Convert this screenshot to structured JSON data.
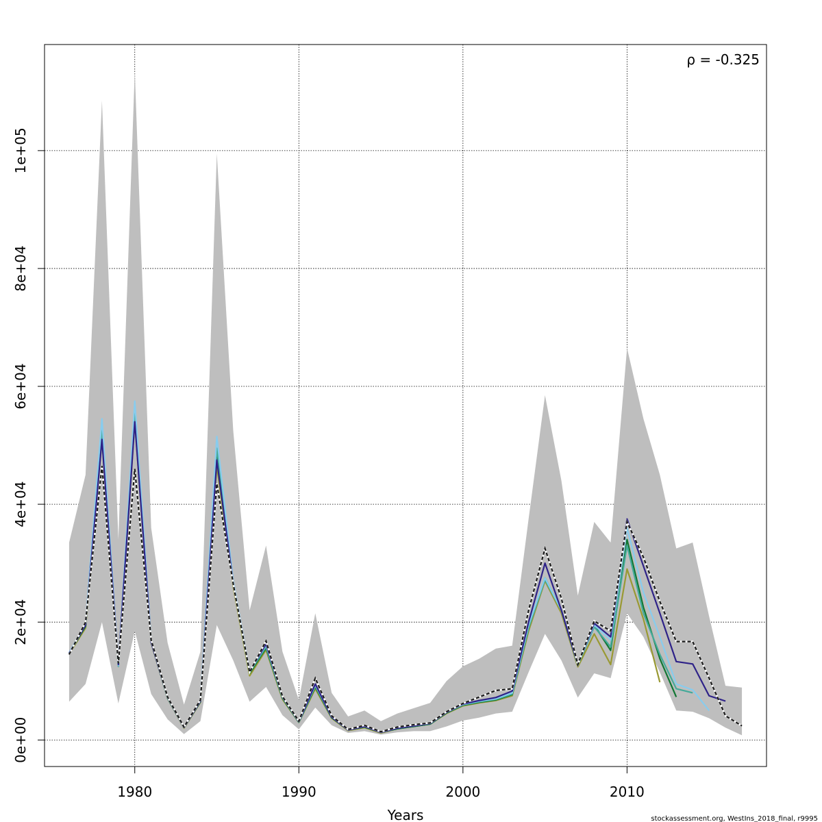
{
  "chart_data": {
    "type": "line",
    "title": "",
    "xlabel": "Years",
    "ylabel": "",
    "xlim": [
      1974.5,
      2018.5
    ],
    "ylim": [
      -4500,
      118000
    ],
    "xticks": [
      1980,
      1990,
      2000,
      2010
    ],
    "xtick_labels": [
      "1980",
      "1990",
      "2000",
      "2010"
    ],
    "yticks": [
      0,
      20000,
      40000,
      60000,
      80000,
      100000
    ],
    "ytick_labels": [
      "0e+00",
      "2e+04",
      "4e+04",
      "6e+04",
      "8e+04",
      "1e+05"
    ],
    "grid": true,
    "annotation": "ρ = -0.325",
    "footer": "stockassessment.org, WestIns_2018_final, r9995",
    "band": {
      "color": "#bebebe",
      "x": [
        1976,
        1977,
        1978,
        1979,
        1980,
        1981,
        1982,
        1983,
        1984,
        1985,
        1986,
        1987,
        1988,
        1989,
        1990,
        1991,
        1992,
        1993,
        1994,
        1995,
        1996,
        1997,
        1998,
        1999,
        2000,
        2001,
        2002,
        2003,
        2004,
        2005,
        2006,
        2007,
        2008,
        2009,
        2010,
        2011,
        2012,
        2013,
        2014,
        2015,
        2016,
        2017
      ],
      "upper": [
        33500,
        45000,
        108500,
        34000,
        113500,
        36000,
        16500,
        6000,
        15000,
        99500,
        52500,
        22000,
        33000,
        15000,
        6800,
        21500,
        8000,
        4000,
        5000,
        3200,
        4500,
        5400,
        6300,
        10000,
        12500,
        13800,
        15500,
        16000,
        37500,
        58500,
        44000,
        24500,
        37000,
        33500,
        66500,
        54500,
        45000,
        32500,
        33500,
        21000,
        9200,
        8900
      ],
      "lower": [
        6500,
        9500,
        20000,
        6200,
        18500,
        7800,
        3500,
        1000,
        3200,
        19500,
        13500,
        6500,
        9000,
        4200,
        1800,
        5500,
        2500,
        1200,
        1500,
        900,
        1300,
        1500,
        1500,
        2300,
        3300,
        3800,
        4500,
        4800,
        11500,
        18000,
        13500,
        7200,
        11300,
        10500,
        21500,
        17500,
        11500,
        5000,
        4800,
        3700,
        2100,
        800
      ]
    },
    "series": [
      {
        "color": "#1a1a1a",
        "dashed": true,
        "x": [
          1976,
          1977,
          1978,
          1979,
          1980,
          1981,
          1982,
          1983,
          1984,
          1985,
          1986,
          1987,
          1988,
          1989,
          1990,
          1991,
          1992,
          1993,
          1994,
          1995,
          1996,
          1997,
          1998,
          1999,
          2000,
          2001,
          2002,
          2003,
          2004,
          2005,
          2006,
          2007,
          2008,
          2009,
          2010,
          2011,
          2012,
          2013,
          2014,
          2015,
          2016,
          2017
        ],
        "y": [
          14500,
          20000,
          46500,
          13000,
          46000,
          17000,
          7300,
          2200,
          6800,
          43500,
          26500,
          11500,
          16800,
          7400,
          3200,
          10500,
          4100,
          1800,
          2500,
          1400,
          2200,
          2600,
          2900,
          4800,
          6200,
          7300,
          8400,
          8700,
          22000,
          32500,
          24000,
          12800,
          20200,
          18500,
          37000,
          31000,
          23500,
          16700,
          16700,
          10500,
          4100,
          2400
        ]
      },
      {
        "color": "#2e2288",
        "dashed": false,
        "x": [
          1976,
          1977,
          1978,
          1979,
          1980,
          1981,
          1982,
          1983,
          1984,
          1985,
          1986,
          1987,
          1988,
          1989,
          1990,
          1991,
          1992,
          1993,
          1994,
          1995,
          1996,
          1997,
          1998,
          1999,
          2000,
          2001,
          2002,
          2003,
          2004,
          2005,
          2006,
          2007,
          2008,
          2009,
          2010,
          2011,
          2012,
          2013,
          2014,
          2015,
          2016
        ],
        "y": [
          14700,
          19500,
          51000,
          12800,
          54000,
          16600,
          7200,
          2100,
          6600,
          47500,
          26500,
          11600,
          16300,
          7300,
          3100,
          9500,
          3900,
          1700,
          2300,
          1300,
          2000,
          2400,
          2800,
          4700,
          6100,
          6700,
          7200,
          8300,
          20000,
          30000,
          22000,
          12800,
          19800,
          17500,
          37500,
          29500,
          21500,
          13300,
          12900,
          7500,
          6600
        ]
      },
      {
        "color": "#88ccee",
        "dashed": false,
        "x": [
          1976,
          1977,
          1978,
          1979,
          1980,
          1981,
          1982,
          1983,
          1984,
          1985,
          1986,
          1987,
          1988,
          1989,
          1990,
          1991,
          1992,
          1993,
          1994,
          1995,
          1996,
          1997,
          1998,
          1999,
          2000,
          2001,
          2002,
          2003,
          2004,
          2005,
          2006,
          2007,
          2008,
          2009,
          2010,
          2011,
          2012,
          2013,
          2014,
          2015
        ],
        "y": [
          14800,
          19800,
          54500,
          12600,
          57500,
          16800,
          7300,
          2100,
          6700,
          51500,
          27000,
          11700,
          16100,
          7300,
          3100,
          9300,
          3900,
          1700,
          2300,
          1300,
          2000,
          2400,
          2800,
          4700,
          6000,
          6600,
          7000,
          8000,
          19500,
          27500,
          22000,
          12900,
          19500,
          17000,
          36000,
          25000,
          17500,
          9500,
          8500,
          5000
        ]
      },
      {
        "color": "#44aa99",
        "dashed": false,
        "x": [
          1976,
          1977,
          1978,
          1979,
          1980,
          1981,
          1982,
          1983,
          1984,
          1985,
          1986,
          1987,
          1988,
          1989,
          1990,
          1991,
          1992,
          1993,
          1994,
          1995,
          1996,
          1997,
          1998,
          1999,
          2000,
          2001,
          2002,
          2003,
          2004,
          2005,
          2006,
          2007,
          2008,
          2009,
          2010,
          2011,
          2012,
          2013,
          2014
        ],
        "y": [
          14700,
          19500,
          52500,
          12500,
          55500,
          16700,
          7200,
          2100,
          6600,
          49500,
          26800,
          11500,
          15800,
          7200,
          3100,
          9200,
          3900,
          1700,
          2300,
          1300,
          2000,
          2400,
          2800,
          4700,
          6000,
          6500,
          6900,
          7800,
          19000,
          27200,
          22000,
          12700,
          19200,
          15800,
          33000,
          21500,
          14500,
          8700,
          8000
        ]
      },
      {
        "color": "#117733",
        "dashed": false,
        "x": [
          1976,
          1977,
          1978,
          1979,
          1980,
          1981,
          1982,
          1983,
          1984,
          1985,
          1986,
          1987,
          1988,
          1989,
          1990,
          1991,
          1992,
          1993,
          1994,
          1995,
          1996,
          1997,
          1998,
          1999,
          2000,
          2001,
          2002,
          2003,
          2004,
          2005,
          2006,
          2007,
          2008,
          2009,
          2010,
          2011,
          2012,
          2013
        ],
        "y": [
          14700,
          19300,
          52000,
          12500,
          55000,
          16600,
          7100,
          2100,
          6500,
          48000,
          26500,
          11300,
          15600,
          7100,
          3000,
          9000,
          3800,
          1700,
          2200,
          1300,
          1900,
          2300,
          2700,
          4600,
          5900,
          6400,
          6800,
          7700,
          19000,
          27500,
          22000,
          12700,
          19500,
          15200,
          34000,
          22500,
          13800,
          7300
        ]
      },
      {
        "color": "#999933",
        "dashed": false,
        "x": [
          1976,
          1977,
          1978,
          1979,
          1980,
          1981,
          1982,
          1983,
          1984,
          1985,
          1986,
          1987,
          1988,
          1989,
          1990,
          1991,
          1992,
          1993,
          1994,
          1995,
          1996,
          1997,
          1998,
          1999,
          2000,
          2001,
          2002,
          2003,
          2004,
          2005,
          2006,
          2007,
          2008,
          2009,
          2010,
          2011,
          2012
        ],
        "y": [
          14600,
          19000,
          51000,
          12600,
          54000,
          16500,
          7100,
          2000,
          6400,
          46500,
          26000,
          10900,
          15300,
          6900,
          3000,
          8700,
          3700,
          1600,
          2100,
          1200,
          1900,
          2300,
          2700,
          4500,
          5800,
          6300,
          6700,
          7500,
          18500,
          27000,
          21500,
          12400,
          18000,
          12800,
          29000,
          20500,
          9800
        ]
      }
    ]
  }
}
